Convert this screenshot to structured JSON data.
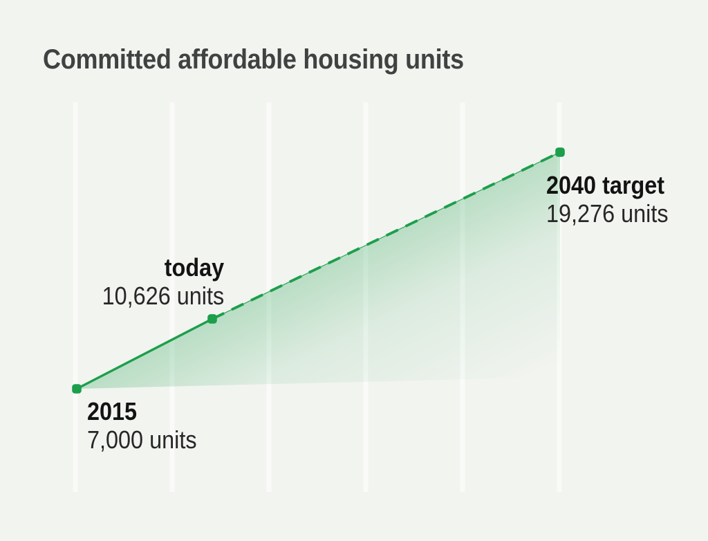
{
  "title": {
    "text": "Committed affordable housing units"
  },
  "chart_data": {
    "type": "line",
    "title": "Committed affordable housing units",
    "unit": "units",
    "points": [
      {
        "label": "2015",
        "value": 7000,
        "value_label": "7,000 units"
      },
      {
        "label": "today",
        "value": 10626,
        "value_label": "10,626 units"
      },
      {
        "label": "2040 target",
        "value": 19276,
        "value_label": "19,276 units"
      }
    ],
    "segments": [
      {
        "from": "2015",
        "to": "today",
        "style": "solid"
      },
      {
        "from": "today",
        "to": "2040 target",
        "style": "dashed"
      }
    ],
    "ylim": [
      7000,
      19276
    ],
    "xlabel": "",
    "ylabel": "",
    "legend": "none",
    "grid": {
      "orientation": "vertical",
      "count": 6,
      "horizontal": false
    },
    "area_fill": "green gradient fading below line"
  },
  "colors": {
    "background": "#f2f4f0",
    "gridline": "#fbfcfa",
    "green": "#1c9e4b",
    "title_text": "#3f4241",
    "label_text": "#131313",
    "value_text": "#272727"
  }
}
